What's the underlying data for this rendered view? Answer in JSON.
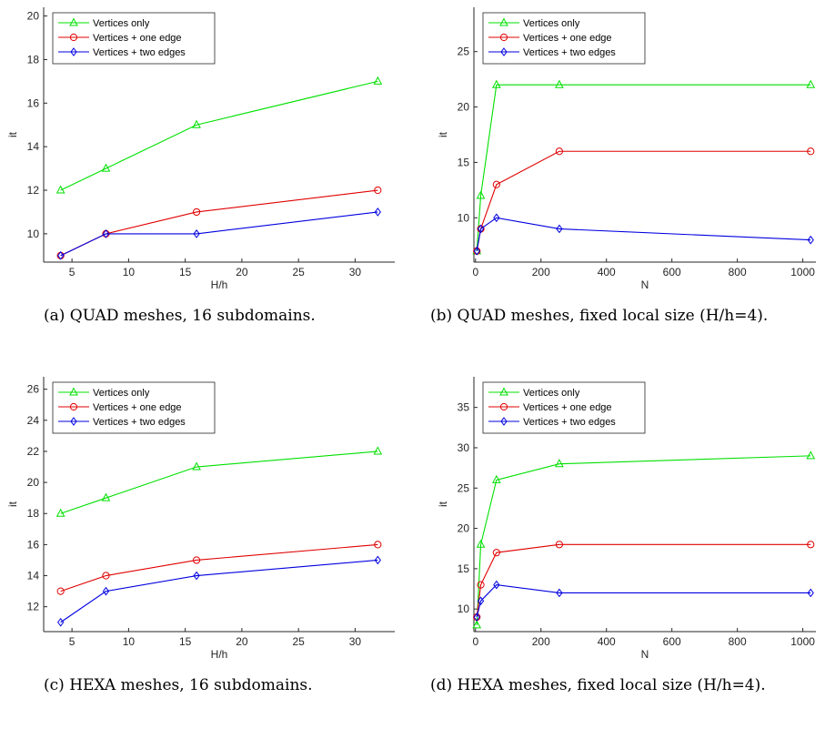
{
  "colors": {
    "green": "#00e000",
    "red": "#e00000",
    "blue": "#0000e0"
  },
  "chart_data": [
    {
      "type": "line",
      "caption": "(a) QUAD meshes, 16 subdomains.",
      "xlabel": "H/h",
      "ylabel": "it",
      "xlim": [
        2.5,
        33.5
      ],
      "ylim": [
        8.7,
        20.4
      ],
      "xticks": [
        5,
        10,
        15,
        20,
        25,
        30
      ],
      "yticks": [
        10,
        12,
        14,
        16,
        18,
        20
      ],
      "legend_position": "top-left",
      "grid": false,
      "x": [
        4,
        8,
        16,
        32
      ],
      "series": [
        {
          "name": "Vertices only",
          "marker": "triangle",
          "color": "#00e000",
          "values": [
            12,
            13,
            15,
            17
          ]
        },
        {
          "name": "Vertices + one edge",
          "marker": "circle",
          "color": "#e00000",
          "values": [
            9,
            10,
            11,
            12
          ]
        },
        {
          "name": "Vertices + two edges",
          "marker": "diamond",
          "color": "#0000e0",
          "values": [
            9,
            10,
            10,
            11
          ]
        }
      ]
    },
    {
      "type": "line",
      "caption": "(b) QUAD meshes, fixed local size (H/h=4).",
      "xlabel": "N",
      "ylabel": "it",
      "xlim": [
        -5,
        1040
      ],
      "ylim": [
        6,
        29
      ],
      "xticks": [
        0,
        200,
        400,
        600,
        800,
        1000
      ],
      "yticks": [
        10,
        15,
        20,
        25
      ],
      "legend_position": "top-left",
      "grid": false,
      "x": [
        4,
        16,
        64,
        256,
        1024
      ],
      "series": [
        {
          "name": "Vertices only",
          "marker": "triangle",
          "color": "#00e000",
          "values": [
            7,
            12,
            22,
            22,
            22
          ]
        },
        {
          "name": "Vertices + one edge",
          "marker": "circle",
          "color": "#e00000",
          "values": [
            7,
            9,
            13,
            16,
            16
          ]
        },
        {
          "name": "Vertices + two edges",
          "marker": "diamond",
          "color": "#0000e0",
          "values": [
            7,
            9,
            10,
            9,
            8
          ]
        }
      ]
    },
    {
      "type": "line",
      "caption": "(c) HEXA meshes, 16 subdomains.",
      "xlabel": "H/h",
      "ylabel": "it",
      "xlim": [
        2.5,
        33.5
      ],
      "ylim": [
        10.4,
        26.8
      ],
      "xticks": [
        5,
        10,
        15,
        20,
        25,
        30
      ],
      "yticks": [
        12,
        14,
        16,
        18,
        20,
        22,
        24,
        26
      ],
      "legend_position": "top-left",
      "grid": false,
      "x": [
        4,
        8,
        16,
        32
      ],
      "series": [
        {
          "name": "Vertices only",
          "marker": "triangle",
          "color": "#00e000",
          "values": [
            18,
            19,
            21,
            22
          ]
        },
        {
          "name": "Vertices + one edge",
          "marker": "circle",
          "color": "#e00000",
          "values": [
            13,
            14,
            15,
            16
          ]
        },
        {
          "name": "Vertices + two edges",
          "marker": "diamond",
          "color": "#0000e0",
          "values": [
            11,
            13,
            14,
            15
          ]
        }
      ]
    },
    {
      "type": "line",
      "caption": "(d) HEXA meshes, fixed local size (H/h=4).",
      "xlabel": "N",
      "ylabel": "it",
      "xlim": [
        -5,
        1040
      ],
      "ylim": [
        7.2,
        38.8
      ],
      "xticks": [
        0,
        200,
        400,
        600,
        800,
        1000
      ],
      "yticks": [
        10,
        15,
        20,
        25,
        30,
        35
      ],
      "legend_position": "top-left",
      "grid": false,
      "x": [
        4,
        16,
        64,
        256,
        1024
      ],
      "series": [
        {
          "name": "Vertices only",
          "marker": "triangle",
          "color": "#00e000",
          "values": [
            8,
            18,
            26,
            28,
            29
          ]
        },
        {
          "name": "Vertices + one edge",
          "marker": "circle",
          "color": "#e00000",
          "values": [
            9,
            13,
            17,
            18,
            18
          ]
        },
        {
          "name": "Vertices + two edges",
          "marker": "diamond",
          "color": "#0000e0",
          "values": [
            9,
            11,
            13,
            12,
            12
          ]
        }
      ]
    }
  ]
}
